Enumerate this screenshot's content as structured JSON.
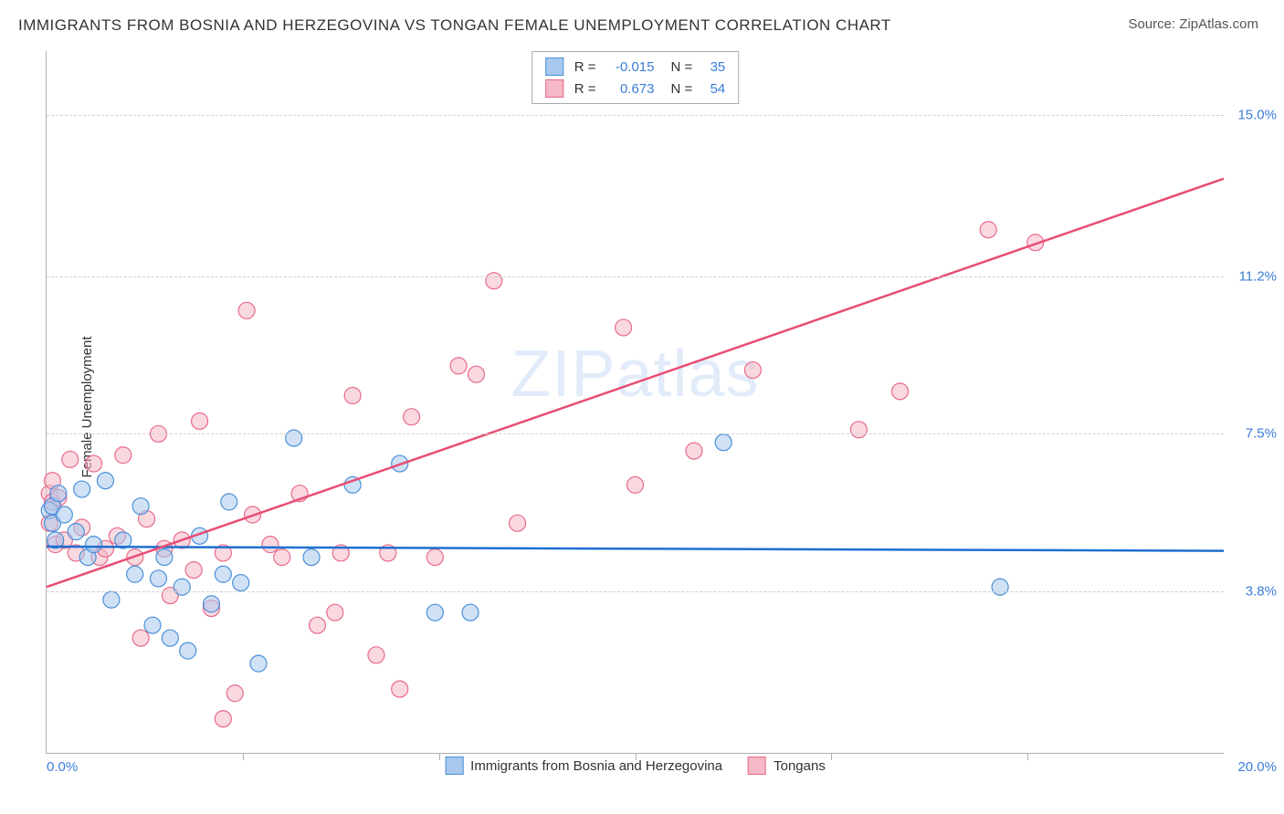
{
  "title": "IMMIGRANTS FROM BOSNIA AND HERZEGOVINA VS TONGAN FEMALE UNEMPLOYMENT CORRELATION CHART",
  "source_label": "Source: ZipAtlas.com",
  "watermark": "ZIPatlas",
  "ylabel": "Female Unemployment",
  "type": "scatter",
  "background_color": "#ffffff",
  "grid_color": "#d0d0d0",
  "axis_color": "#b0b0b0",
  "title_fontsize": 17,
  "label_fontsize": 15,
  "value_color": "#3b7dd8",
  "xlim": [
    0.0,
    20.0
  ],
  "ylim": [
    0.0,
    16.5
  ],
  "x_ticks_visible": [
    0.0,
    20.0
  ],
  "x_tick_labels": [
    "0.0%",
    "20.0%"
  ],
  "x_minor_ticks": [
    3.33,
    6.67,
    10.0,
    13.33,
    16.67
  ],
  "y_gridlines": [
    3.8,
    7.5,
    11.2,
    15.0
  ],
  "y_grid_labels": [
    "3.8%",
    "7.5%",
    "11.2%",
    "15.0%"
  ],
  "series": [
    {
      "name": "Immigrants from Bosnia and Herzegovina",
      "short": "bosnia",
      "color_fill": "#a9c8ee",
      "color_stroke": "#4a90d9",
      "line_color": "#1f6fd0",
      "marker_radius": 9,
      "fill_opacity": 0.55,
      "R": "-0.015",
      "N": "35",
      "regression": {
        "y_at_x0": 4.85,
        "y_at_x20": 4.75
      },
      "points": [
        [
          0.05,
          5.7
        ],
        [
          0.1,
          5.4
        ],
        [
          0.1,
          5.8
        ],
        [
          0.15,
          5.0
        ],
        [
          0.2,
          6.1
        ],
        [
          0.3,
          5.6
        ],
        [
          0.5,
          5.2
        ],
        [
          0.6,
          6.2
        ],
        [
          0.7,
          4.6
        ],
        [
          0.8,
          4.9
        ],
        [
          1.0,
          6.4
        ],
        [
          1.1,
          3.6
        ],
        [
          1.3,
          5.0
        ],
        [
          1.5,
          4.2
        ],
        [
          1.6,
          5.8
        ],
        [
          1.8,
          3.0
        ],
        [
          1.9,
          4.1
        ],
        [
          2.0,
          4.6
        ],
        [
          2.1,
          2.7
        ],
        [
          2.3,
          3.9
        ],
        [
          2.4,
          2.4
        ],
        [
          2.6,
          5.1
        ],
        [
          2.8,
          3.5
        ],
        [
          3.0,
          4.2
        ],
        [
          3.1,
          5.9
        ],
        [
          3.3,
          4.0
        ],
        [
          3.6,
          2.1
        ],
        [
          4.2,
          7.4
        ],
        [
          4.5,
          4.6
        ],
        [
          5.2,
          6.3
        ],
        [
          6.0,
          6.8
        ],
        [
          6.6,
          3.3
        ],
        [
          7.2,
          3.3
        ],
        [
          11.5,
          7.3
        ],
        [
          16.2,
          3.9
        ]
      ]
    },
    {
      "name": "Tongans",
      "short": "tongans",
      "color_fill": "#f4b8c6",
      "color_stroke": "#e86b8a",
      "line_color": "#e84d73",
      "marker_radius": 9,
      "fill_opacity": 0.55,
      "R": "0.673",
      "N": "54",
      "regression": {
        "y_at_x0": 3.9,
        "y_at_x20": 13.5
      },
      "points": [
        [
          0.05,
          6.1
        ],
        [
          0.05,
          5.4
        ],
        [
          0.1,
          5.9
        ],
        [
          0.1,
          6.4
        ],
        [
          0.15,
          4.9
        ],
        [
          0.2,
          6.0
        ],
        [
          0.3,
          5.0
        ],
        [
          0.4,
          6.9
        ],
        [
          0.5,
          4.7
        ],
        [
          0.6,
          5.3
        ],
        [
          0.8,
          6.8
        ],
        [
          0.9,
          4.6
        ],
        [
          1.0,
          4.8
        ],
        [
          1.2,
          5.1
        ],
        [
          1.3,
          7.0
        ],
        [
          1.5,
          4.6
        ],
        [
          1.6,
          2.7
        ],
        [
          1.7,
          5.5
        ],
        [
          1.9,
          7.5
        ],
        [
          2.0,
          4.8
        ],
        [
          2.1,
          3.7
        ],
        [
          2.3,
          5.0
        ],
        [
          2.5,
          4.3
        ],
        [
          2.6,
          7.8
        ],
        [
          2.8,
          3.4
        ],
        [
          3.0,
          4.7
        ],
        [
          3.0,
          0.8
        ],
        [
          3.2,
          1.4
        ],
        [
          3.4,
          10.4
        ],
        [
          3.5,
          5.6
        ],
        [
          3.8,
          4.9
        ],
        [
          4.0,
          4.6
        ],
        [
          4.3,
          6.1
        ],
        [
          4.9,
          3.3
        ],
        [
          5.0,
          4.7
        ],
        [
          5.2,
          8.4
        ],
        [
          5.6,
          2.3
        ],
        [
          5.8,
          4.7
        ],
        [
          6.0,
          1.5
        ],
        [
          6.2,
          7.9
        ],
        [
          6.6,
          4.6
        ],
        [
          7.0,
          9.1
        ],
        [
          7.3,
          8.9
        ],
        [
          7.6,
          11.1
        ],
        [
          8.0,
          5.4
        ],
        [
          9.8,
          10.0
        ],
        [
          10.0,
          6.3
        ],
        [
          12.0,
          9.0
        ],
        [
          13.8,
          7.6
        ],
        [
          16.0,
          12.3
        ],
        [
          16.8,
          12.0
        ],
        [
          14.5,
          8.5
        ],
        [
          11.0,
          7.1
        ],
        [
          4.6,
          3.0
        ]
      ]
    }
  ],
  "legend_top": {
    "r_label": "R =",
    "n_label": "N ="
  },
  "legend_bottom": [
    {
      "series": 0
    },
    {
      "series": 1
    }
  ]
}
